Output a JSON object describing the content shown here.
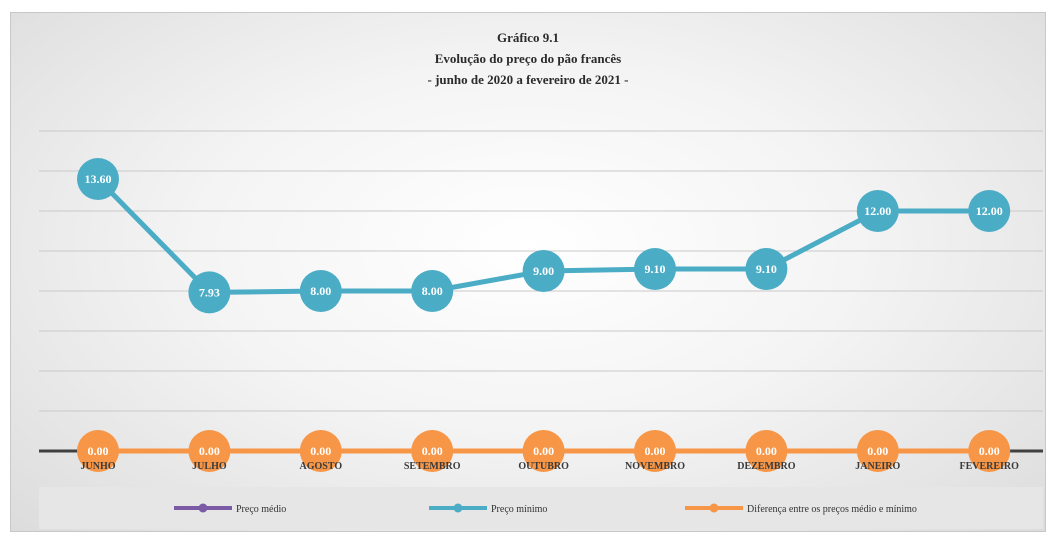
{
  "chart_data": {
    "type": "line",
    "title_lines": [
      "Gráfico 9.1",
      "Evolução do preço do pão francês",
      "- junho de 2020 a fevereiro de 2021 -"
    ],
    "categories": [
      "JUNHO",
      "JULHO",
      "AGOSTO",
      "SETEMBRO",
      "OUTUBRO",
      "NOVEMBRO",
      "DEZEMBRO",
      "JANEIRO",
      "FEVEREIRO"
    ],
    "series": [
      {
        "name": "Preço médio",
        "color": "#7b5aa6",
        "values": [
          null,
          null,
          null,
          null,
          null,
          null,
          null,
          null,
          null
        ]
      },
      {
        "name": "Preço mínimo",
        "color": "#4bacc6",
        "values": [
          13.6,
          7.93,
          8.0,
          8.0,
          9.0,
          9.1,
          9.1,
          12.0,
          12.0
        ],
        "labels": [
          "13.60",
          "7.93",
          "8.00",
          "8.00",
          "9.00",
          "9.10",
          "9.10",
          "12.00",
          "12.00"
        ]
      },
      {
        "name": "Diferença entre os preços médio e mínimo",
        "color": "#f79646",
        "values": [
          0,
          0,
          0,
          0,
          0,
          0,
          0,
          0,
          0
        ],
        "labels": [
          "0.00",
          "0.00",
          "0.00",
          "0.00",
          "0.00",
          "0.00",
          "0.00",
          "0.00",
          "0.00"
        ]
      }
    ],
    "ylim": [
      0,
      16
    ],
    "grid": true,
    "legend_position": "bottom",
    "xlabel": "",
    "ylabel": ""
  }
}
